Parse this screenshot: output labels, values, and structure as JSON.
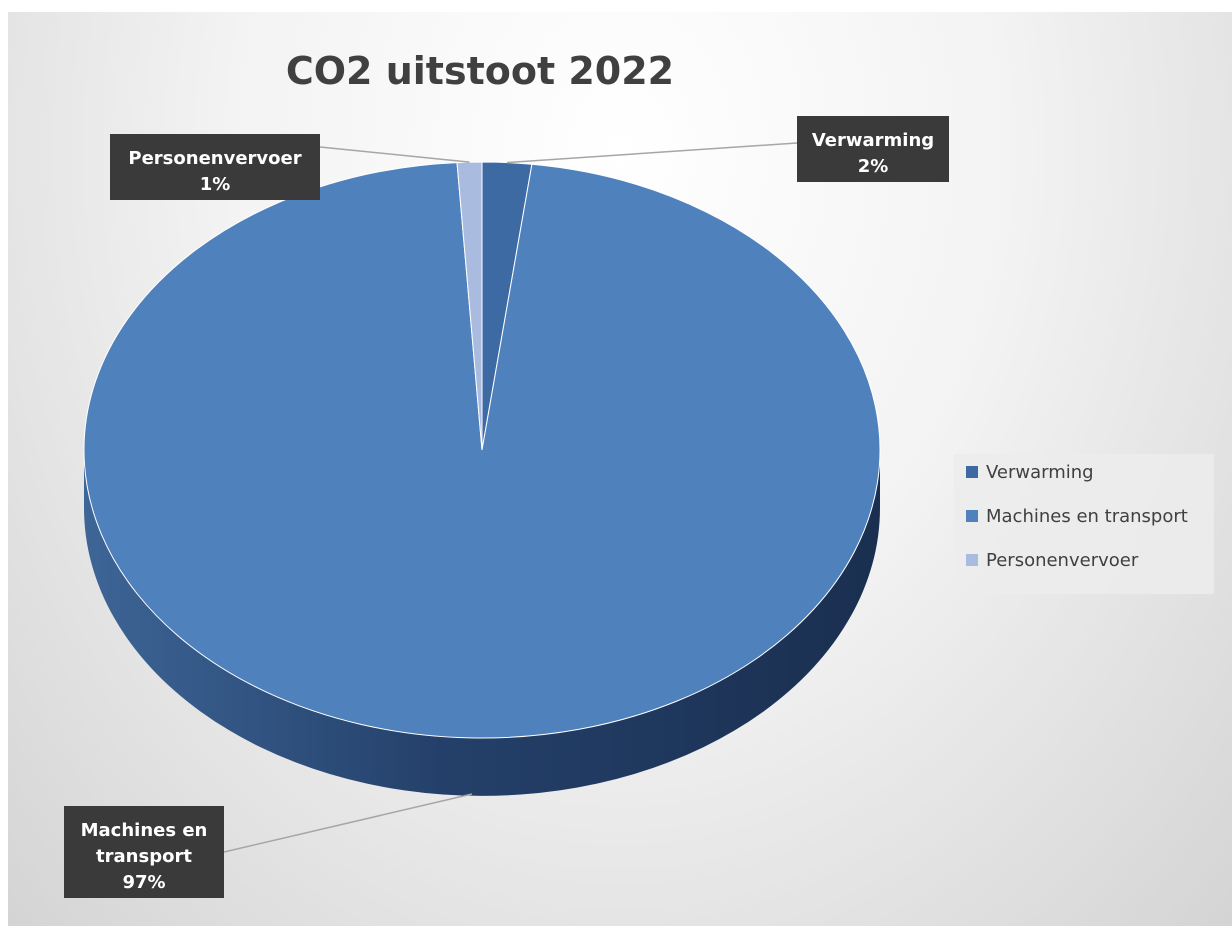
{
  "chart_data": {
    "type": "pie",
    "title": "CO2 uitstoot 2022",
    "style": "3d",
    "slices": [
      {
        "label": "Verwarming",
        "value": 2,
        "data_label": [
          "Verwarming",
          "2%"
        ],
        "color": "#3e6aa4"
      },
      {
        "label": "Machines en transport",
        "value": 97,
        "data_label": [
          "Machines en",
          "transport",
          "97%"
        ],
        "color": "#4f81bd"
      },
      {
        "label": "Personenvervoer",
        "value": 1,
        "data_label": [
          "Personenvervoer",
          "1%"
        ],
        "color": "#aabbe0"
      }
    ],
    "legend": {
      "position": "right",
      "entries": [
        "Verwarming",
        "Machines en transport",
        "Personenvervoer"
      ]
    }
  }
}
